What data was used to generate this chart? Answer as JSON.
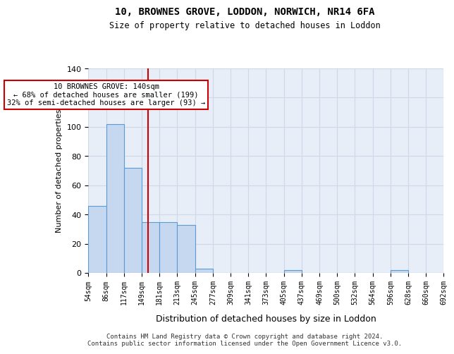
{
  "title1": "10, BROWNES GROVE, LODDON, NORWICH, NR14 6FA",
  "title2": "Size of property relative to detached houses in Loddon",
  "xlabel": "Distribution of detached houses by size in Loddon",
  "ylabel": "Number of detached properties",
  "bins": [
    "54sqm",
    "86sqm",
    "117sqm",
    "149sqm",
    "181sqm",
    "213sqm",
    "245sqm",
    "277sqm",
    "309sqm",
    "341sqm",
    "373sqm",
    "405sqm",
    "437sqm",
    "469sqm",
    "500sqm",
    "532sqm",
    "564sqm",
    "596sqm",
    "628sqm",
    "660sqm",
    "692sqm"
  ],
  "bar_values": [
    46,
    102,
    72,
    35,
    35,
    33,
    3,
    0,
    0,
    0,
    0,
    2,
    0,
    0,
    0,
    0,
    0,
    2,
    0,
    0
  ],
  "bar_color": "#c5d8f0",
  "bar_edge_color": "#5b9bd5",
  "grid_color": "#d0d8e8",
  "background_color": "#e8eef8",
  "vline_x_bin_index": 2.87,
  "vline_color": "#cc0000",
  "annotation_text": "10 BROWNES GROVE: 140sqm\n← 68% of detached houses are smaller (199)\n32% of semi-detached houses are larger (93) →",
  "annotation_box_color": "#cc0000",
  "annotation_text_color": "#000000",
  "footer": "Contains HM Land Registry data © Crown copyright and database right 2024.\nContains public sector information licensed under the Open Government Licence v3.0.",
  "ylim": [
    0,
    140
  ],
  "yticks": [
    0,
    20,
    40,
    60,
    80,
    100,
    120,
    140
  ]
}
